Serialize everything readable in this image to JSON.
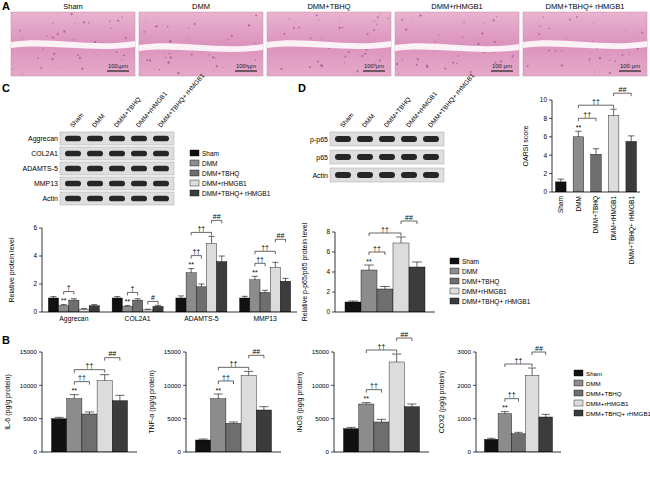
{
  "panel_labels": [
    "A",
    "B",
    "C",
    "D"
  ],
  "histology": {
    "titles": [
      "Sham",
      "DMM",
      "DMM+TBHQ",
      "DMM+rHMGB1",
      "DMM+TBHQ+ rHMGB1"
    ],
    "scale_bar": "100 μm"
  },
  "blots": [
    {
      "lanes": [
        "Sham",
        "DMM",
        "DMM+TBHQ",
        "DMM+rHMGB1",
        "DMM+TBHQ+ rHMGB1"
      ],
      "rows": [
        "Aggrecan",
        "COL2A1",
        "ADAMTS-5",
        "MMP13",
        "Actin"
      ]
    },
    {
      "lanes": [
        "Sham",
        "DMM",
        "DMM+TBHQ",
        "DMM+rHMGB1",
        "DMM+TBHQ+ rHMGB1"
      ],
      "rows": [
        "p-p65",
        "p65",
        "Actin"
      ]
    }
  ],
  "chart_data": [
    {
      "type": "bar",
      "y_label": "OARSI score",
      "categories": [
        "Sham",
        "DMM",
        "DMM+TBHQ",
        "DMM+rHMGB1",
        "DMM+TBHQ+ rHMGB1"
      ],
      "values": [
        1.1,
        6.0,
        4.1,
        8.3,
        5.5
      ],
      "errors": [
        0.3,
        0.6,
        0.6,
        0.7,
        0.6
      ],
      "colors": [
        "#111111",
        "#8c8c8c",
        "#6e6e6e",
        "#dcdcdc",
        "#3c3c3c"
      ],
      "ylim": [
        0,
        10
      ],
      "yticks": [
        0,
        2,
        4,
        6,
        8,
        10
      ],
      "annotations": [
        {
          "text": "**",
          "at": 1
        },
        {
          "text": "††",
          "from": 1,
          "to": 2
        },
        {
          "text": "††",
          "from": 1,
          "to": 3
        },
        {
          "text": "##",
          "from": 3,
          "to": 4
        }
      ]
    },
    {
      "type": "bar",
      "y_label": "Relative protein level",
      "categories": [
        "Aggrecan",
        "COL2A1",
        "ADAMTS-5",
        "MMP13"
      ],
      "series": [
        {
          "name": "Sham",
          "color": "#111111",
          "values": [
            1,
            1,
            1,
            1
          ],
          "errors": [
            0.1,
            0.1,
            0.15,
            0.12
          ]
        },
        {
          "name": "DMM",
          "color": "#8c8c8c",
          "values": [
            0.45,
            0.4,
            2.8,
            2.3
          ],
          "errors": [
            0.08,
            0.07,
            0.3,
            0.25
          ]
        },
        {
          "name": "DMM+TBHQ",
          "color": "#6e6e6e",
          "values": [
            0.85,
            0.85,
            1.8,
            1.4
          ],
          "errors": [
            0.1,
            0.1,
            0.2,
            0.15
          ]
        },
        {
          "name": "DMM+rHMGB1",
          "color": "#dcdcdc",
          "values": [
            0.2,
            0.15,
            4.9,
            3.2
          ],
          "errors": [
            0.05,
            0.05,
            0.5,
            0.35
          ]
        },
        {
          "name": "DMM+TBHQ+ rHMGB1",
          "color": "#3c3c3c",
          "values": [
            0.45,
            0.4,
            3.6,
            2.2
          ],
          "errors": [
            0.08,
            0.07,
            0.4,
            0.2
          ]
        }
      ],
      "ylim": [
        0,
        6
      ],
      "yticks": [
        0,
        2,
        4,
        6
      ],
      "legend": "upper right",
      "annotations": [
        {
          "text": "**",
          "at": 1
        },
        {
          "text": "†",
          "from": 1,
          "to": 2
        },
        {
          "text": "**",
          "at": 6
        },
        {
          "text": "†",
          "from": 6,
          "to": 7
        },
        {
          "text": "#",
          "from": 8,
          "to": 9
        },
        {
          "text": "**",
          "at": 11
        },
        {
          "text": "††",
          "from": 11,
          "to": 12
        },
        {
          "text": "††",
          "from": 11,
          "to": 13
        },
        {
          "text": "##",
          "from": 13,
          "to": 14
        },
        {
          "text": "**",
          "at": 16
        },
        {
          "text": "††",
          "from": 16,
          "to": 17
        },
        {
          "text": "††",
          "from": 16,
          "to": 18
        },
        {
          "text": "##",
          "from": 18,
          "to": 19
        }
      ]
    },
    {
      "type": "bar",
      "y_label": "Relative p-p65/p65 protein level",
      "categories": [
        null
      ],
      "series": [
        {
          "name": "Sham",
          "color": "#111111",
          "values": [
            1.0
          ],
          "errors": [
            0.1
          ]
        },
        {
          "name": "DMM",
          "color": "#8c8c8c",
          "values": [
            4.2
          ],
          "errors": [
            0.5
          ]
        },
        {
          "name": "DMM+TBHQ",
          "color": "#6e6e6e",
          "values": [
            2.3
          ],
          "errors": [
            0.25
          ]
        },
        {
          "name": "DMM+rHMGB1",
          "color": "#dcdcdc",
          "values": [
            6.9
          ],
          "errors": [
            0.6
          ]
        },
        {
          "name": "DMM+TBHQ+ rHMGB1",
          "color": "#3c3c3c",
          "values": [
            4.5
          ],
          "errors": [
            0.5
          ]
        }
      ],
      "ylim": [
        0,
        8
      ],
      "yticks": [
        0,
        2,
        4,
        6,
        8
      ],
      "legend": "right",
      "annotations": [
        {
          "text": "**",
          "at": 1
        },
        {
          "text": "††",
          "from": 1,
          "to": 2
        },
        {
          "text": "††",
          "from": 1,
          "to": 3
        },
        {
          "text": "##",
          "from": 3,
          "to": 4
        }
      ]
    },
    {
      "type": "bar",
      "y_label": "IL-6 (pg/g protein)",
      "categories": [
        null
      ],
      "series": [
        {
          "name": "Sham",
          "color": "#111111",
          "values": [
            5000
          ],
          "errors": [
            200
          ]
        },
        {
          "name": "DMM",
          "color": "#8c8c8c",
          "values": [
            8000
          ],
          "errors": [
            600
          ]
        },
        {
          "name": "DMM+TBHQ",
          "color": "#6e6e6e",
          "values": [
            5700
          ],
          "errors": [
            300
          ]
        },
        {
          "name": "DMM+rHMGB1",
          "color": "#dcdcdc",
          "values": [
            10700
          ],
          "errors": [
            900
          ]
        },
        {
          "name": "DMM+TBHQ+ rHMGB1",
          "color": "#3c3c3c",
          "values": [
            7700
          ],
          "errors": [
            800
          ]
        }
      ],
      "ylim": [
        0,
        15000
      ],
      "yticks": [
        0,
        5000,
        10000,
        15000
      ],
      "annotations": [
        {
          "text": "**",
          "at": 1
        },
        {
          "text": "††",
          "from": 1,
          "to": 2
        },
        {
          "text": "††",
          "from": 1,
          "to": 3
        },
        {
          "text": "##",
          "from": 3,
          "to": 4
        }
      ]
    },
    {
      "type": "bar",
      "y_label": "TNF-α (pg/g protein)",
      "categories": [
        null
      ],
      "series": [
        {
          "name": "Sham",
          "color": "#111111",
          "values": [
            1800
          ],
          "errors": [
            150
          ]
        },
        {
          "name": "DMM",
          "color": "#8c8c8c",
          "values": [
            8000
          ],
          "errors": [
            700
          ]
        },
        {
          "name": "DMM+TBHQ",
          "color": "#6e6e6e",
          "values": [
            4300
          ],
          "errors": [
            200
          ]
        },
        {
          "name": "DMM+rHMGB1",
          "color": "#dcdcdc",
          "values": [
            11500
          ],
          "errors": [
            600
          ]
        },
        {
          "name": "DMM+TBHQ+ rHMGB1",
          "color": "#3c3c3c",
          "values": [
            6300
          ],
          "errors": [
            500
          ]
        }
      ],
      "ylim": [
        0,
        15000
      ],
      "yticks": [
        0,
        5000,
        10000,
        15000
      ],
      "annotations": [
        {
          "text": "**",
          "at": 1
        },
        {
          "text": "††",
          "from": 1,
          "to": 2
        },
        {
          "text": "††",
          "from": 1,
          "to": 3
        },
        {
          "text": "##",
          "from": 3,
          "to": 4
        }
      ]
    },
    {
      "type": "bar",
      "y_label": "iNOS (pg/g protein)",
      "categories": [
        null
      ],
      "series": [
        {
          "name": "Sham",
          "color": "#111111",
          "values": [
            3500
          ],
          "errors": [
            200
          ]
        },
        {
          "name": "DMM",
          "color": "#8c8c8c",
          "values": [
            7200
          ],
          "errors": [
            200
          ]
        },
        {
          "name": "DMM+TBHQ",
          "color": "#6e6e6e",
          "values": [
            4500
          ],
          "errors": [
            400
          ]
        },
        {
          "name": "DMM+rHMGB1",
          "color": "#dcdcdc",
          "values": [
            13500
          ],
          "errors": [
            1200
          ]
        },
        {
          "name": "DMM+TBHQ+ rHMGB1",
          "color": "#3c3c3c",
          "values": [
            6800
          ],
          "errors": [
            400
          ]
        }
      ],
      "ylim": [
        0,
        15000
      ],
      "yticks": [
        0,
        5000,
        10000,
        15000
      ],
      "annotations": [
        {
          "text": "**",
          "at": 1
        },
        {
          "text": "††",
          "from": 1,
          "to": 2
        },
        {
          "text": "††",
          "from": 1,
          "to": 3
        },
        {
          "text": "##",
          "from": 3,
          "to": 4
        }
      ]
    },
    {
      "type": "bar",
      "y_label": "COX2 (pg/g protein)",
      "categories": [
        null
      ],
      "series": [
        {
          "name": "Sham",
          "color": "#111111",
          "values": [
            380
          ],
          "errors": [
            30
          ]
        },
        {
          "name": "DMM",
          "color": "#8c8c8c",
          "values": [
            1150
          ],
          "errors": [
            60
          ]
        },
        {
          "name": "DMM+TBHQ",
          "color": "#6e6e6e",
          "values": [
            550
          ],
          "errors": [
            40
          ]
        },
        {
          "name": "DMM+rHMGB1",
          "color": "#dcdcdc",
          "values": [
            2300
          ],
          "errors": [
            220
          ]
        },
        {
          "name": "DMM+TBHQ+ rHMGB1",
          "color": "#3c3c3c",
          "values": [
            1050
          ],
          "errors": [
            80
          ]
        }
      ],
      "ylim": [
        0,
        3000
      ],
      "yticks": [
        0,
        1000,
        2000,
        3000
      ],
      "legend": "right",
      "annotations": [
        {
          "text": "**",
          "at": 1
        },
        {
          "text": "††",
          "from": 1,
          "to": 2
        },
        {
          "text": "††",
          "from": 1,
          "to": 3
        },
        {
          "text": "##",
          "from": 3,
          "to": 4
        }
      ]
    }
  ]
}
